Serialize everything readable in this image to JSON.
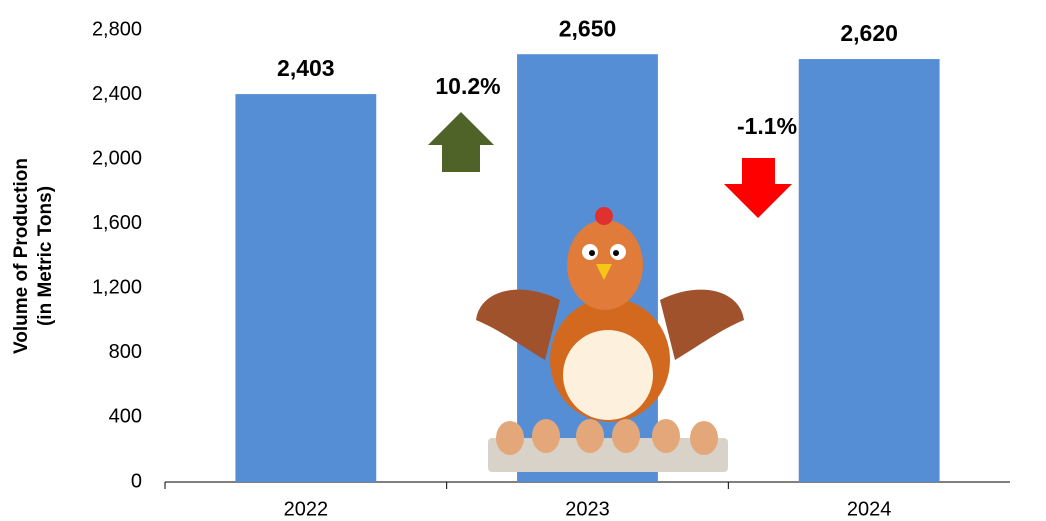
{
  "chart_data": {
    "type": "bar",
    "ylabel": [
      "Volume of Production",
      "(in Metric Tons)"
    ],
    "categories": [
      "2022",
      "2023",
      "2024"
    ],
    "values": [
      2403,
      2650,
      2620
    ],
    "value_labels": [
      "2,403",
      "2,650",
      "2,620"
    ],
    "color": "#558ed5",
    "ylim": [
      0,
      2800
    ],
    "yticks": [
      0,
      400,
      800,
      {
        "value": 1200,
        "label": "1,200"
      },
      {
        "value": 1600,
        "label": "1,600"
      },
      {
        "value": 2000,
        "label": "2,000"
      },
      {
        "value": 2400,
        "label": "2,400"
      },
      {
        "value": 2800,
        "label": "2,800"
      }
    ],
    "grid": false,
    "annotations": [
      "10.2%",
      "-1.1%"
    ]
  }
}
